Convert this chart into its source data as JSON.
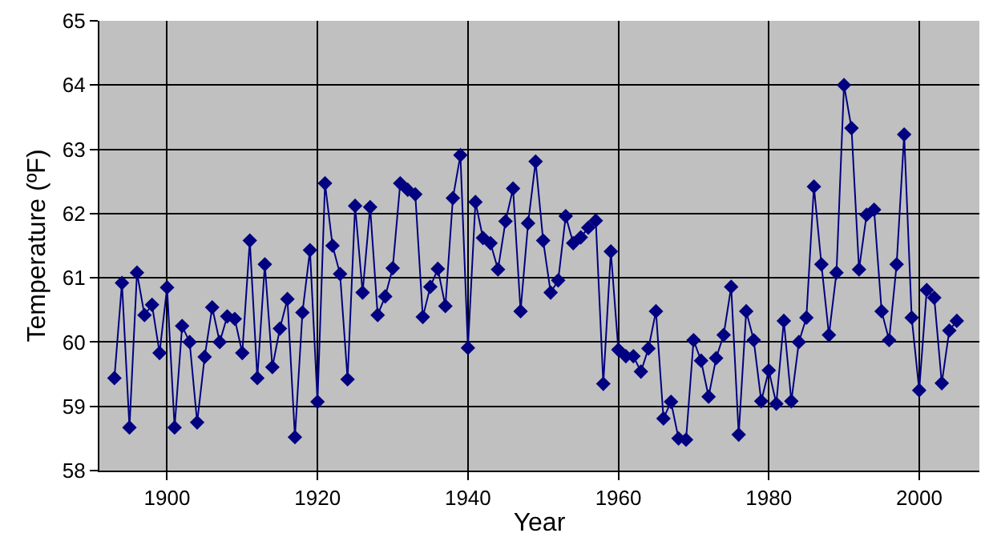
{
  "chart_data": {
    "type": "line",
    "xlabel": "Year",
    "ylabel": "Temperature (ºF)",
    "x": [
      1893,
      1894,
      1895,
      1896,
      1897,
      1898,
      1899,
      1900,
      1901,
      1902,
      1903,
      1904,
      1905,
      1906,
      1907,
      1908,
      1909,
      1910,
      1911,
      1912,
      1913,
      1914,
      1915,
      1916,
      1917,
      1918,
      1919,
      1920,
      1921,
      1922,
      1923,
      1924,
      1925,
      1926,
      1927,
      1928,
      1929,
      1930,
      1931,
      1932,
      1933,
      1934,
      1935,
      1936,
      1937,
      1938,
      1939,
      1940,
      1941,
      1942,
      1943,
      1944,
      1945,
      1946,
      1947,
      1948,
      1949,
      1950,
      1951,
      1952,
      1953,
      1954,
      1955,
      1956,
      1957,
      1958,
      1959,
      1960,
      1961,
      1962,
      1963,
      1964,
      1965,
      1966,
      1967,
      1968,
      1969,
      1970,
      1971,
      1972,
      1973,
      1974,
      1975,
      1976,
      1977,
      1978,
      1979,
      1980,
      1981,
      1982,
      1983,
      1984,
      1985,
      1986,
      1987,
      1988,
      1989,
      1990,
      1991,
      1992,
      1993,
      1994,
      1995,
      1996,
      1997,
      1998,
      1999,
      2000,
      2001,
      2002,
      2003,
      2004,
      2005
    ],
    "series": [
      {
        "color": "#000080",
        "values": [
          59.44,
          60.92,
          58.67,
          61.08,
          60.42,
          60.58,
          59.83,
          60.85,
          58.67,
          60.25,
          60.0,
          58.75,
          59.77,
          60.54,
          60.0,
          60.4,
          60.36,
          59.83,
          61.58,
          59.44,
          61.21,
          59.61,
          60.21,
          60.67,
          58.52,
          60.46,
          61.43,
          59.07,
          62.47,
          61.5,
          61.06,
          59.42,
          62.12,
          60.77,
          62.1,
          60.42,
          60.71,
          61.15,
          62.47,
          62.37,
          62.3,
          60.39,
          60.86,
          61.14,
          60.56,
          62.24,
          62.91,
          59.91,
          62.18,
          61.62,
          61.54,
          61.13,
          61.88,
          62.39,
          60.48,
          61.85,
          62.81,
          61.58,
          60.77,
          60.96,
          61.96,
          61.54,
          61.63,
          61.78,
          61.89,
          59.35,
          61.41,
          59.88,
          59.78,
          59.78,
          59.54,
          59.9,
          60.48,
          58.81,
          59.07,
          58.5,
          58.48,
          60.03,
          59.71,
          59.15,
          59.75,
          60.11,
          60.86,
          58.56,
          60.48,
          60.03,
          59.08,
          59.56,
          59.04,
          60.33,
          59.08,
          60.0,
          60.38,
          62.42,
          61.21,
          60.11,
          61.08,
          64.0,
          63.33,
          61.13,
          61.98,
          62.06,
          60.48,
          60.03,
          61.21,
          63.23,
          60.38,
          59.25,
          60.81,
          60.69,
          59.36,
          60.18,
          60.33
        ]
      }
    ],
    "xlim": [
      1891,
      2008
    ],
    "xticks": [
      1900,
      1920,
      1940,
      1960,
      1980,
      2000
    ],
    "ylim": [
      58,
      65
    ],
    "yticks": [
      58,
      59,
      60,
      61,
      62,
      63,
      64,
      65
    ],
    "grid": true,
    "marker": "diamond",
    "line_style": "solid"
  }
}
